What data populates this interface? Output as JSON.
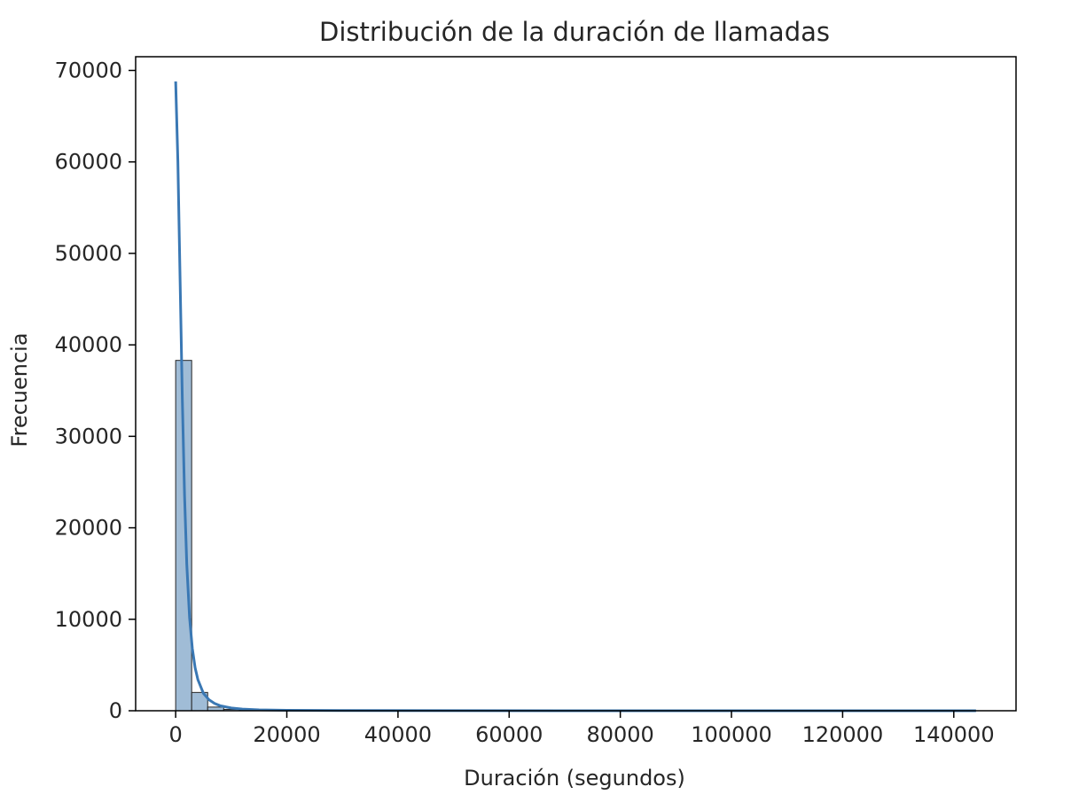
{
  "chart_data": {
    "type": "bar",
    "subtype": "histogram-with-kde",
    "title": "Distribución de la duración de llamadas",
    "xlabel": "Duración (segundos)",
    "ylabel": "Frecuencia",
    "xlim": [
      -7200,
      151200
    ],
    "ylim": [
      0,
      71500
    ],
    "xticks": [
      0,
      20000,
      40000,
      60000,
      80000,
      100000,
      120000,
      140000
    ],
    "yticks": [
      0,
      10000,
      20000,
      30000,
      40000,
      50000,
      60000,
      70000
    ],
    "bin_width": 2880,
    "bins": [
      {
        "x0": 0,
        "x1": 2880,
        "count": 38300
      },
      {
        "x0": 2880,
        "x1": 5760,
        "count": 2000
      },
      {
        "x0": 5760,
        "x1": 8640,
        "count": 400
      },
      {
        "x0": 8640,
        "x1": 11520,
        "count": 150
      },
      {
        "x0": 11520,
        "x1": 14400,
        "count": 60
      },
      {
        "x0": 14400,
        "x1": 17280,
        "count": 30
      },
      {
        "x0": 17280,
        "x1": 20160,
        "count": 15
      },
      {
        "x0": 20160,
        "x1": 23040,
        "count": 8
      },
      {
        "x0": 23040,
        "x1": 25920,
        "count": 5
      }
    ],
    "kde": {
      "x": [
        0,
        400,
        800,
        1200,
        1600,
        2000,
        2500,
        3000,
        3500,
        4000,
        5000,
        6000,
        7000,
        8000,
        10000,
        12000,
        15000,
        20000,
        30000,
        50000,
        80000,
        110000,
        144000
      ],
      "y": [
        68800,
        60000,
        47000,
        34000,
        23500,
        16000,
        10200,
        6800,
        4700,
        3400,
        1900,
        1200,
        800,
        550,
        300,
        180,
        100,
        50,
        20,
        8,
        4,
        3,
        2
      ]
    },
    "colors": {
      "bar_fill": "#a0bcd6",
      "bar_edge": "#262626",
      "kde_line": "#3a78b4",
      "axes": "#000000",
      "text": "#262626"
    },
    "grid": false,
    "legend": false
  }
}
